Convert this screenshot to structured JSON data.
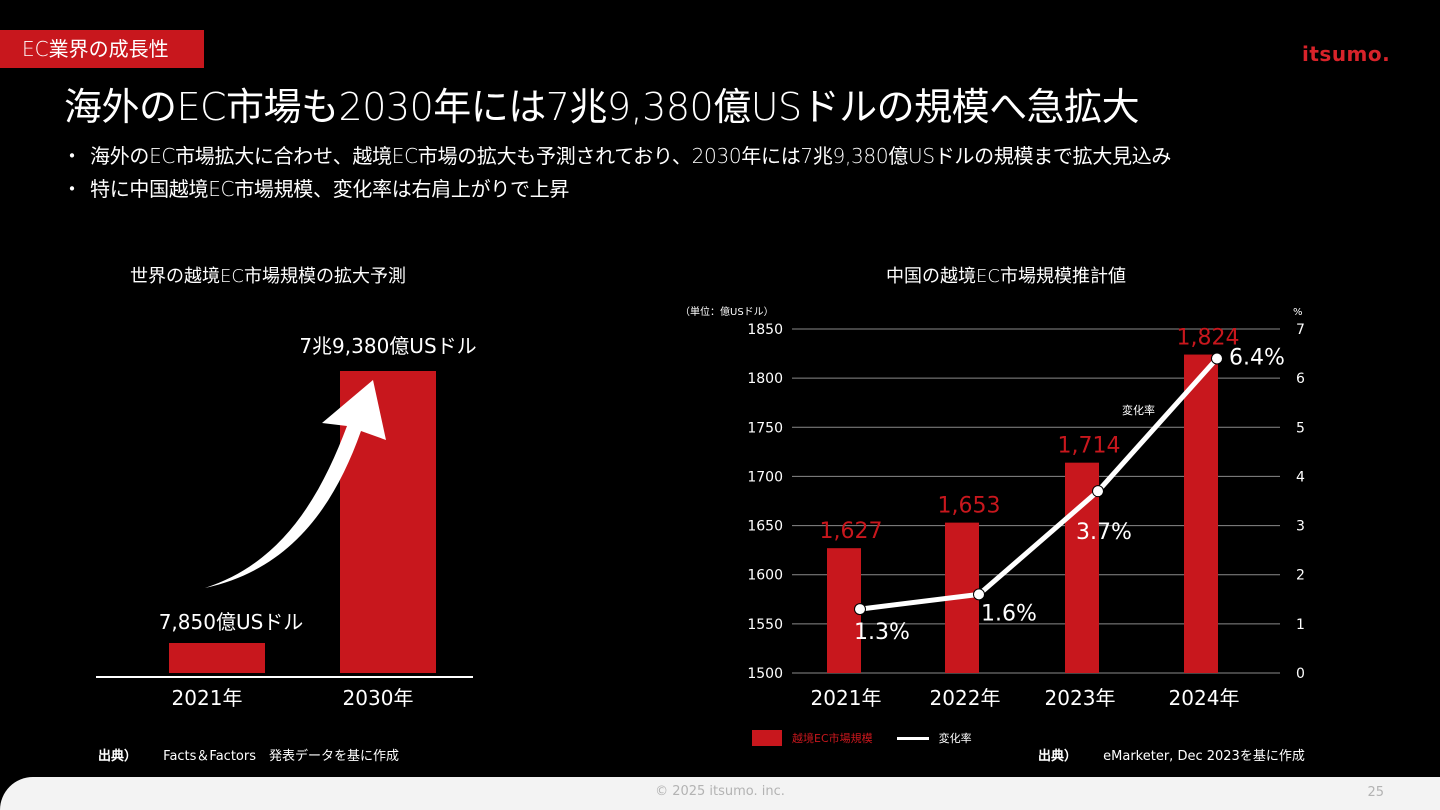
{
  "header": {
    "section_tag": "EC業界の成長性",
    "logo": "itsumo.",
    "title": "海外のEC市場も2030年には7兆9,380億USドルの規模へ急拡大"
  },
  "bullets": [
    "海外のEC市場拡大に合わせ、越境EC市場の拡大も予測されており、2030年には7兆9,380億USドルの規模まで拡大見込み",
    "特に中国越境EC市場規模、変化率は右肩上がりで上昇"
  ],
  "left_chart": {
    "title": "世界の越境EC市場規模の拡大予測",
    "source_label": "出典）",
    "source_text": "Facts＆Factors　発表データを基に作成"
  },
  "right_chart": {
    "title": "中国の越境EC市場規模推計値",
    "unit_label": "（単位：億USドル）",
    "percent_label": "%",
    "line_label": "変化率",
    "legend_bar": "越境EC市場規模",
    "legend_line": "変化率",
    "source_label": "出典）",
    "source_text": "eMarketer, Dec 2023を基に作成"
  },
  "chart_data": [
    {
      "type": "bar",
      "categories": [
        "2021年",
        "2030年"
      ],
      "values": [
        7850,
        79380
      ],
      "data_labels": [
        "7,850億USドル",
        "7兆9,380億USドル"
      ],
      "title": "世界の越境EC市場規模の拡大予測",
      "xlabel": "",
      "ylabel": "",
      "grid": false,
      "annotation": "growth-arrow"
    },
    {
      "type": "bar",
      "categories": [
        "2021年",
        "2022年",
        "2023年",
        "2024年"
      ],
      "title": "中国の越境EC市場規模推計値",
      "series": [
        {
          "name": "越境EC市場規模",
          "type": "bar",
          "axis": "left",
          "values": [
            1627,
            1653,
            1714,
            1824
          ],
          "data_labels": [
            "1,627",
            "1,653",
            "1,714",
            "1,824"
          ]
        },
        {
          "name": "変化率",
          "type": "line",
          "axis": "right",
          "values": [
            1.3,
            1.6,
            3.7,
            6.4
          ],
          "data_labels": [
            "1.3%",
            "1.6%",
            "3.7%",
            "6.4%"
          ]
        }
      ],
      "ylim": [
        1500,
        1850
      ],
      "yticks": [
        1500,
        1550,
        1600,
        1650,
        1700,
        1750,
        1800,
        1850
      ],
      "y2lim": [
        0,
        7
      ],
      "y2ticks": [
        0,
        1,
        2,
        3,
        4,
        5,
        6,
        7
      ],
      "ylabel": "（単位：億USドル）",
      "y2label": "%",
      "grid": true,
      "legend": "bottom-left"
    }
  ],
  "colors": {
    "accent": "#c8171d",
    "background": "#000000",
    "text": "#ffffff",
    "footer": "#f3f3f3"
  },
  "footer": {
    "copyright": "© 2025 itsumo. inc.",
    "page_number": "25"
  }
}
